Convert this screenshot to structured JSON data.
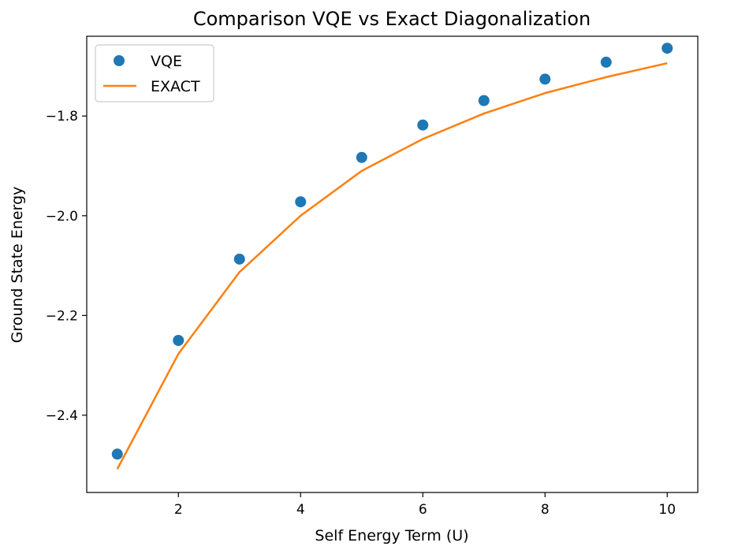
{
  "chart_data": {
    "type": "line",
    "title": "Comparison VQE vs Exact Diagonalization",
    "xlabel": "Self Energy Term (U)",
    "ylabel": "Ground State Energy",
    "xlim": [
      0.5,
      10.5
    ],
    "ylim": [
      -2.555,
      -1.64
    ],
    "xticks": [
      2,
      4,
      6,
      8,
      10
    ],
    "yticks": [
      -2.4,
      -2.2,
      -2.0,
      -1.8
    ],
    "xtick_labels": [
      "2",
      "4",
      "6",
      "8",
      "10"
    ],
    "ytick_labels": [
      "−2.4",
      "−2.2",
      "−2.0",
      "−1.8"
    ],
    "grid": false,
    "legend_position": "top-left",
    "x": [
      1,
      2,
      3,
      4,
      5,
      6,
      7,
      8,
      9,
      10
    ],
    "series": [
      {
        "name": "VQE",
        "kind": "scatter",
        "color": "#1f77b4",
        "values": [
          -2.478,
          -2.25,
          -2.087,
          -1.972,
          -1.883,
          -1.818,
          -1.769,
          -1.726,
          -1.692,
          -1.664
        ]
      },
      {
        "name": "EXACT",
        "kind": "line",
        "color": "#ff7f0e",
        "values": [
          -2.508,
          -2.277,
          -2.113,
          -2.0,
          -1.91,
          -1.846,
          -1.795,
          -1.754,
          -1.722,
          -1.694
        ]
      }
    ]
  }
}
